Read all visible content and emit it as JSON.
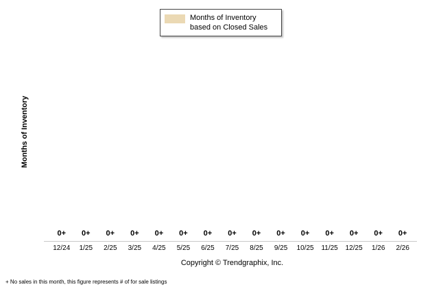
{
  "legend": {
    "label": "Months of Inventory based on Closed Sales",
    "swatch_color": "#ebd9b4"
  },
  "y_axis": {
    "label": "Months of Inventory"
  },
  "copyright": "Copyright © Trendgraphix, Inc.",
  "footnote": "+  No sales in this month, this figure represents # of for sale listings",
  "chart_data": {
    "type": "bar",
    "title": "",
    "series_name": "Months of Inventory based on Closed Sales",
    "categories": [
      "12/24",
      "1/25",
      "2/25",
      "3/25",
      "4/25",
      "5/25",
      "6/25",
      "7/25",
      "8/25",
      "9/25",
      "10/25",
      "11/25",
      "12/25",
      "1/26",
      "2/26"
    ],
    "values": [
      0,
      0,
      0,
      0,
      0,
      0,
      0,
      0,
      0,
      0,
      0,
      0,
      0,
      0,
      0
    ],
    "value_labels": [
      "0+",
      "0+",
      "0+",
      "0+",
      "0+",
      "0+",
      "0+",
      "0+",
      "0+",
      "0+",
      "0+",
      "0+",
      "0+",
      "0+",
      "0+"
    ],
    "xlabel": "",
    "ylabel": "Months of Inventory",
    "ylim": [
      0,
      1
    ],
    "grid": false,
    "legend_position": "top-center",
    "bar_color": "#ebd9b4"
  }
}
